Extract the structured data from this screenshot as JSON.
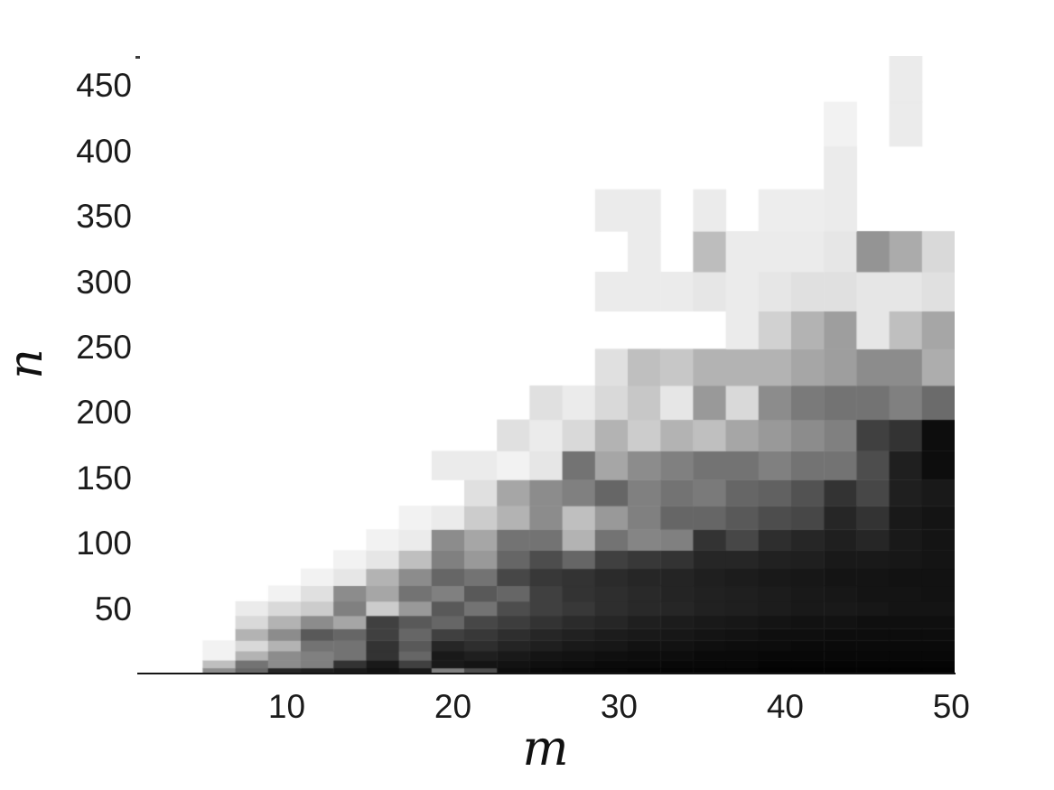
{
  "figure": {
    "background": "#ffffff"
  },
  "style": {
    "tick_label_color": "#1b1b1b",
    "axis_line_color": "#151515",
    "colormap_low": "#ffffff",
    "colormap_high": "#000000"
  },
  "chart_data": {
    "type": "heatmap",
    "title": "",
    "xlabel": "m",
    "ylabel": "n",
    "x_tick_labels": [
      "10",
      "20",
      "30",
      "40",
      "50"
    ],
    "x_tick_values": [
      10,
      20,
      30,
      40,
      50
    ],
    "y_tick_labels": [
      "50",
      "100",
      "150",
      "200",
      "250",
      "300",
      "350",
      "400",
      "450"
    ],
    "y_tick_values": [
      50,
      100,
      150,
      200,
      250,
      300,
      350,
      400,
      450
    ],
    "xlim": [
      1,
      50.2
    ],
    "ylim": [
      0,
      473
    ],
    "grid": false,
    "legend": "none",
    "colormap": "grayscale, 0 = white, 100 = black",
    "value_units": "percent darkness (estimated cell intensity)",
    "columns_m": [
      2,
      4,
      6,
      8,
      10,
      12,
      14,
      16,
      18,
      20,
      22,
      24,
      26,
      28,
      30,
      32,
      34,
      36,
      38,
      40,
      42,
      44,
      46,
      48,
      50
    ],
    "row_n_edges": [
      0,
      5,
      11,
      18,
      26,
      35,
      45,
      56,
      68,
      81,
      95,
      111,
      129,
      149,
      171,
      195,
      221,
      249,
      278,
      308,
      339,
      371,
      404,
      438,
      473
    ],
    "values_rows_bottom_to_top": [
      [
        0,
        0,
        45,
        60,
        85,
        88,
        90,
        93,
        90,
        50,
        70,
        95,
        96,
        97,
        97,
        98,
        98,
        98,
        98,
        99,
        99,
        99,
        99,
        99,
        99
      ],
      [
        0,
        0,
        25,
        55,
        45,
        50,
        80,
        90,
        75,
        90,
        92,
        93,
        94,
        95,
        96,
        96,
        97,
        97,
        97,
        98,
        98,
        98,
        98,
        98,
        98
      ],
      [
        0,
        0,
        5,
        30,
        45,
        50,
        55,
        80,
        60,
        90,
        88,
        90,
        92,
        93,
        94,
        95,
        95,
        96,
        96,
        97,
        97,
        97,
        97,
        97,
        97
      ],
      [
        0,
        0,
        5,
        15,
        30,
        55,
        55,
        80,
        65,
        85,
        82,
        86,
        88,
        90,
        91,
        93,
        93,
        94,
        95,
        95,
        96,
        96,
        96,
        96,
        96
      ],
      [
        0,
        0,
        0,
        30,
        45,
        65,
        60,
        75,
        60,
        75,
        78,
        82,
        85,
        87,
        89,
        90,
        91,
        92,
        93,
        94,
        94,
        95,
        95,
        95,
        95
      ],
      [
        0,
        0,
        0,
        15,
        30,
        45,
        35,
        75,
        65,
        60,
        72,
        76,
        80,
        83,
        85,
        88,
        89,
        90,
        91,
        92,
        93,
        93,
        94,
        94,
        94
      ],
      [
        0,
        0,
        0,
        8,
        15,
        20,
        50,
        20,
        40,
        65,
        55,
        70,
        75,
        78,
        82,
        84,
        85,
        87,
        88,
        89,
        90,
        90,
        91,
        92,
        92
      ],
      [
        0,
        0,
        0,
        0,
        5,
        12,
        45,
        35,
        55,
        50,
        65,
        60,
        75,
        80,
        82,
        84,
        86,
        87,
        88,
        89,
        90,
        91,
        92,
        92,
        93
      ],
      [
        0,
        0,
        0,
        0,
        0,
        5,
        10,
        30,
        45,
        60,
        55,
        72,
        78,
        80,
        83,
        85,
        86,
        88,
        89,
        90,
        91,
        92,
        92,
        93,
        93
      ],
      [
        0,
        0,
        0,
        0,
        0,
        0,
        5,
        10,
        25,
        50,
        40,
        60,
        70,
        60,
        75,
        78,
        80,
        85,
        85,
        87,
        88,
        90,
        90,
        91,
        92
      ],
      [
        0,
        0,
        0,
        0,
        0,
        0,
        0,
        5,
        8,
        45,
        35,
        55,
        55,
        30,
        55,
        48,
        50,
        80,
        72,
        82,
        85,
        88,
        85,
        90,
        92
      ],
      [
        0,
        0,
        0,
        0,
        0,
        0,
        0,
        0,
        5,
        8,
        20,
        30,
        45,
        25,
        40,
        50,
        60,
        60,
        65,
        70,
        72,
        85,
        80,
        90,
        92
      ],
      [
        0,
        0,
        0,
        0,
        0,
        0,
        0,
        0,
        0,
        0,
        12,
        35,
        45,
        50,
        60,
        50,
        55,
        52,
        60,
        62,
        68,
        80,
        72,
        88,
        90
      ],
      [
        0,
        0,
        0,
        0,
        0,
        0,
        0,
        0,
        0,
        8,
        8,
        5,
        10,
        55,
        35,
        45,
        50,
        55,
        55,
        50,
        55,
        55,
        70,
        88,
        95
      ],
      [
        0,
        0,
        0,
        0,
        0,
        0,
        0,
        0,
        0,
        0,
        0,
        12,
        8,
        15,
        30,
        20,
        30,
        25,
        35,
        40,
        45,
        50,
        75,
        80,
        95
      ],
      [
        0,
        0,
        0,
        0,
        0,
        0,
        0,
        0,
        0,
        0,
        0,
        0,
        12,
        8,
        15,
        22,
        10,
        40,
        15,
        45,
        52,
        55,
        55,
        50,
        58
      ],
      [
        0,
        0,
        0,
        0,
        0,
        0,
        0,
        0,
        0,
        0,
        0,
        0,
        0,
        0,
        12,
        25,
        22,
        30,
        30,
        30,
        35,
        38,
        45,
        45,
        32
      ],
      [
        0,
        0,
        0,
        0,
        0,
        0,
        0,
        0,
        0,
        0,
        0,
        0,
        0,
        0,
        0,
        0,
        0,
        0,
        8,
        18,
        30,
        38,
        10,
        25,
        35
      ],
      [
        0,
        0,
        0,
        0,
        0,
        0,
        0,
        0,
        0,
        0,
        0,
        0,
        0,
        0,
        8,
        8,
        8,
        10,
        8,
        10,
        12,
        12,
        10,
        10,
        12
      ],
      [
        0,
        0,
        0,
        0,
        0,
        0,
        0,
        0,
        0,
        0,
        0,
        0,
        0,
        0,
        0,
        8,
        0,
        26,
        8,
        8,
        8,
        10,
        42,
        33,
        15
      ],
      [
        0,
        0,
        0,
        0,
        0,
        0,
        0,
        0,
        0,
        0,
        0,
        0,
        0,
        0,
        8,
        8,
        0,
        8,
        0,
        7,
        7,
        8,
        0,
        0,
        0
      ],
      [
        0,
        0,
        0,
        0,
        0,
        0,
        0,
        0,
        0,
        0,
        0,
        0,
        0,
        0,
        0,
        0,
        0,
        0,
        0,
        0,
        0,
        8,
        0,
        0,
        0
      ],
      [
        0,
        0,
        0,
        0,
        0,
        0,
        0,
        0,
        0,
        0,
        0,
        0,
        0,
        0,
        0,
        0,
        0,
        0,
        0,
        0,
        0,
        5,
        0,
        8,
        0
      ],
      [
        0,
        0,
        0,
        0,
        0,
        0,
        0,
        0,
        0,
        0,
        0,
        0,
        0,
        0,
        0,
        0,
        0,
        0,
        0,
        0,
        0,
        0,
        0,
        8,
        0
      ]
    ]
  }
}
